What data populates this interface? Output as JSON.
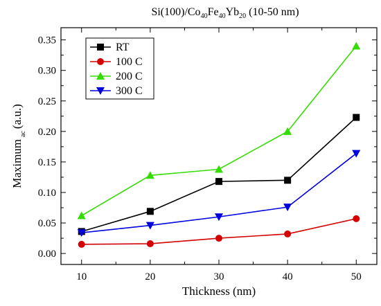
{
  "chart_data": {
    "type": "line",
    "title_parts": [
      {
        "text": "Si(100)/Co"
      },
      {
        "text": "40",
        "sub": true
      },
      {
        "text": "Fe"
      },
      {
        "text": "40",
        "sub": true
      },
      {
        "text": "Yb"
      },
      {
        "text": "20",
        "sub": true
      },
      {
        "text": " (10-50 nm)"
      }
    ],
    "xlabel": "Thickness (nm)",
    "ylabel_main": "Maximum",
    "ylabel_sub": "ac",
    "ylabel_tail": "(a.u.)",
    "x": [
      10,
      20,
      30,
      40,
      50
    ],
    "xlim": [
      7,
      53
    ],
    "ylim": [
      -0.018,
      0.37
    ],
    "xticks": [
      "10",
      "20",
      "30",
      "40",
      "50"
    ],
    "yticks": [
      "0.00",
      "0.05",
      "0.10",
      "0.15",
      "0.20",
      "0.25",
      "0.30",
      "0.35"
    ],
    "legend_position": "top-left",
    "series": [
      {
        "name": "RT",
        "color": "#000000",
        "marker": "square",
        "values": [
          0.036,
          0.069,
          0.118,
          0.12,
          0.223
        ]
      },
      {
        "name": "100  C",
        "color": "#d40000",
        "marker": "circle",
        "values": [
          0.015,
          0.016,
          0.025,
          0.032,
          0.057
        ]
      },
      {
        "name": "200  C",
        "color": "#33dd00",
        "marker": "triangle-up",
        "values": [
          0.062,
          0.128,
          0.138,
          0.2,
          0.34
        ]
      },
      {
        "name": "300  C",
        "color": "#0000dd",
        "marker": "triangle-down",
        "values": [
          0.034,
          0.046,
          0.06,
          0.076,
          0.164
        ]
      }
    ]
  }
}
